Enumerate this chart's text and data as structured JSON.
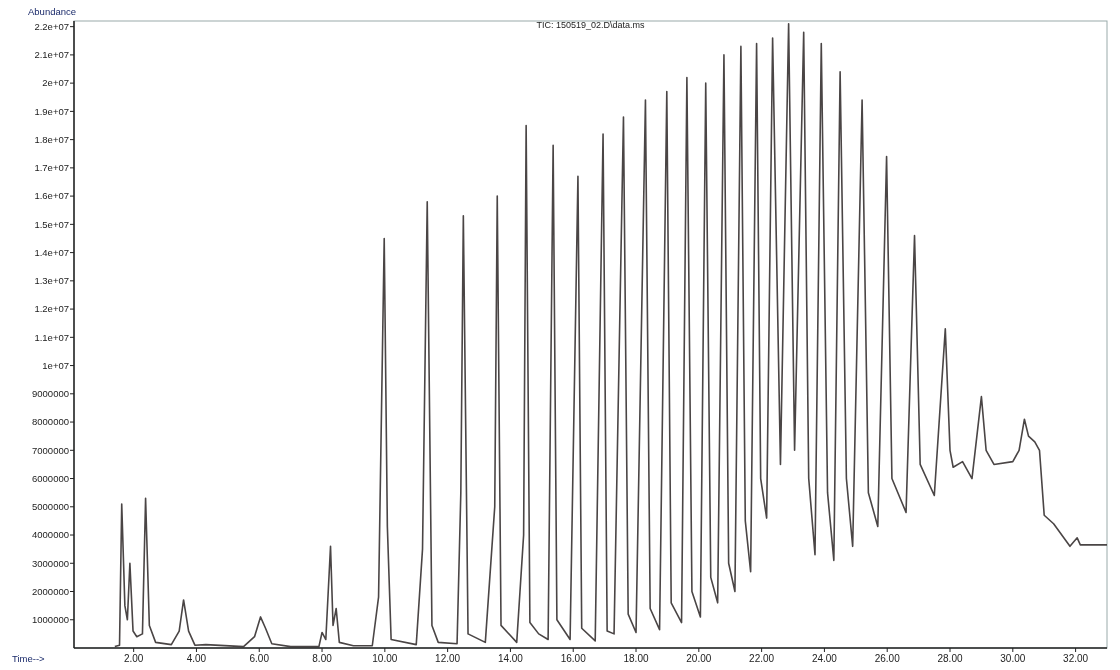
{
  "chart_data": {
    "type": "line",
    "title": "TIC: 150519_02.D\\data.ms",
    "xlabel": "Time-->",
    "ylabel": "Abundance",
    "xlim": [
      0.1,
      33
    ],
    "ylim": [
      0,
      22200000
    ],
    "xticks": [
      {
        "value": 2,
        "label": "2.00"
      },
      {
        "value": 4,
        "label": "4.00"
      },
      {
        "value": 6,
        "label": "6.00"
      },
      {
        "value": 8,
        "label": "8.00"
      },
      {
        "value": 10,
        "label": "10.00"
      },
      {
        "value": 12,
        "label": "12.00"
      },
      {
        "value": 14,
        "label": "14.00"
      },
      {
        "value": 16,
        "label": "16.00"
      },
      {
        "value": 18,
        "label": "18.00"
      },
      {
        "value": 20,
        "label": "20.00"
      },
      {
        "value": 22,
        "label": "22.00"
      },
      {
        "value": 24,
        "label": "24.00"
      },
      {
        "value": 26,
        "label": "26.00"
      },
      {
        "value": 28,
        "label": "28.00"
      },
      {
        "value": 30,
        "label": "30.00"
      },
      {
        "value": 32,
        "label": "32.00"
      }
    ],
    "yticks": [
      1000000,
      2000000,
      3000000,
      4000000,
      5000000,
      6000000,
      7000000,
      8000000,
      9000000,
      {
        "value": 10000000,
        "label": "1e+07"
      },
      {
        "value": 11000000,
        "label": "1.1e+07"
      },
      {
        "value": 12000000,
        "label": "1.2e+07"
      },
      {
        "value": 13000000,
        "label": "1.3e+07"
      },
      {
        "value": 14000000,
        "label": "1.4e+07"
      },
      {
        "value": 15000000,
        "label": "1.5e+07"
      },
      {
        "value": 16000000,
        "label": "1.6e+07"
      },
      {
        "value": 17000000,
        "label": "1.7e+07"
      },
      {
        "value": 18000000,
        "label": "1.8e+07"
      },
      {
        "value": 19000000,
        "label": "1.9e+07"
      },
      {
        "value": 20000000,
        "label": "2e+07"
      },
      {
        "value": 21000000,
        "label": "2.1e+07"
      },
      {
        "value": 22000000,
        "label": "2.2e+07"
      }
    ],
    "grid": false,
    "marker": "none",
    "line_style": "solid",
    "series": [
      {
        "color": "#4a4545",
        "x": [
          1.4,
          1.55,
          1.62,
          1.72,
          1.8,
          1.88,
          1.98,
          2.1,
          2.28,
          2.38,
          2.5,
          2.7,
          3.2,
          3.45,
          3.59,
          3.75,
          3.95,
          4.3,
          5.5,
          5.85,
          6.04,
          6.2,
          6.4,
          7.0,
          7.9,
          8.0,
          8.12,
          8.27,
          8.35,
          8.45,
          8.55,
          9.0,
          9.6,
          9.8,
          9.98,
          10.08,
          10.2,
          11.0,
          11.2,
          11.35,
          11.5,
          11.7,
          12.3,
          12.42,
          12.5,
          12.65,
          13.2,
          13.5,
          13.58,
          13.7,
          14.2,
          14.42,
          14.5,
          14.62,
          14.9,
          15.2,
          15.36,
          15.48,
          15.9,
          16.15,
          16.27,
          16.7,
          16.95,
          17.08,
          17.3,
          17.6,
          17.75,
          18.0,
          18.3,
          18.45,
          18.75,
          18.98,
          19.12,
          19.45,
          19.62,
          19.78,
          20.05,
          20.22,
          20.38,
          20.6,
          20.8,
          20.95,
          21.15,
          21.34,
          21.48,
          21.65,
          21.84,
          21.97,
          22.16,
          22.35,
          22.6,
          22.86,
          23.05,
          23.34,
          23.5,
          23.7,
          23.9,
          24.1,
          24.3,
          24.5,
          24.7,
          24.9,
          25.2,
          25.4,
          25.7,
          25.98,
          26.15,
          26.6,
          26.87,
          27.05,
          27.5,
          27.85,
          28.0,
          28.1,
          28.4,
          28.7,
          29.0,
          29.15,
          29.4,
          30.0,
          30.2,
          30.37,
          30.5,
          30.7,
          30.85,
          31.0,
          31.3,
          31.82,
          32.05,
          32.15,
          33.0
        ],
        "values": [
          50000,
          100000,
          5100000,
          1500000,
          1000000,
          3000000,
          600000,
          400000,
          500000,
          5300000,
          800000,
          200000,
          120000,
          600000,
          1700000,
          600000,
          100000,
          120000,
          50000,
          400000,
          1100000,
          700000,
          150000,
          50000,
          50000,
          550000,
          300000,
          3600000,
          800000,
          1400000,
          200000,
          80000,
          80000,
          1800000,
          14500000,
          4300000,
          300000,
          120000,
          3500000,
          15800000,
          800000,
          200000,
          150000,
          5500000,
          15300000,
          500000,
          200000,
          5000000,
          16000000,
          800000,
          200000,
          4000000,
          18500000,
          900000,
          500000,
          300000,
          17800000,
          1000000,
          300000,
          16700000,
          700000,
          250000,
          18200000,
          600000,
          500000,
          18800000,
          1200000,
          550000,
          19400000,
          1400000,
          650000,
          19700000,
          1600000,
          900000,
          20200000,
          2000000,
          1100000,
          20000000,
          2500000,
          1600000,
          21000000,
          3000000,
          2000000,
          21300000,
          4500000,
          2700000,
          21400000,
          6000000,
          4600000,
          21600000,
          6500000,
          22100000,
          7000000,
          21800000,
          6000000,
          3300000,
          21400000,
          5500000,
          3100000,
          20400000,
          6000000,
          3600000,
          19400000,
          5500000,
          4300000,
          17400000,
          6000000,
          4800000,
          14600000,
          6500000,
          5400000,
          11300000,
          7000000,
          6400000,
          6600000,
          6000000,
          8900000,
          7000000,
          6500000,
          6600000,
          7000000,
          8100000,
          7500000,
          7300000,
          7000000,
          4700000,
          4400000,
          3600000,
          3900000,
          3650000,
          3650000
        ]
      }
    ]
  }
}
